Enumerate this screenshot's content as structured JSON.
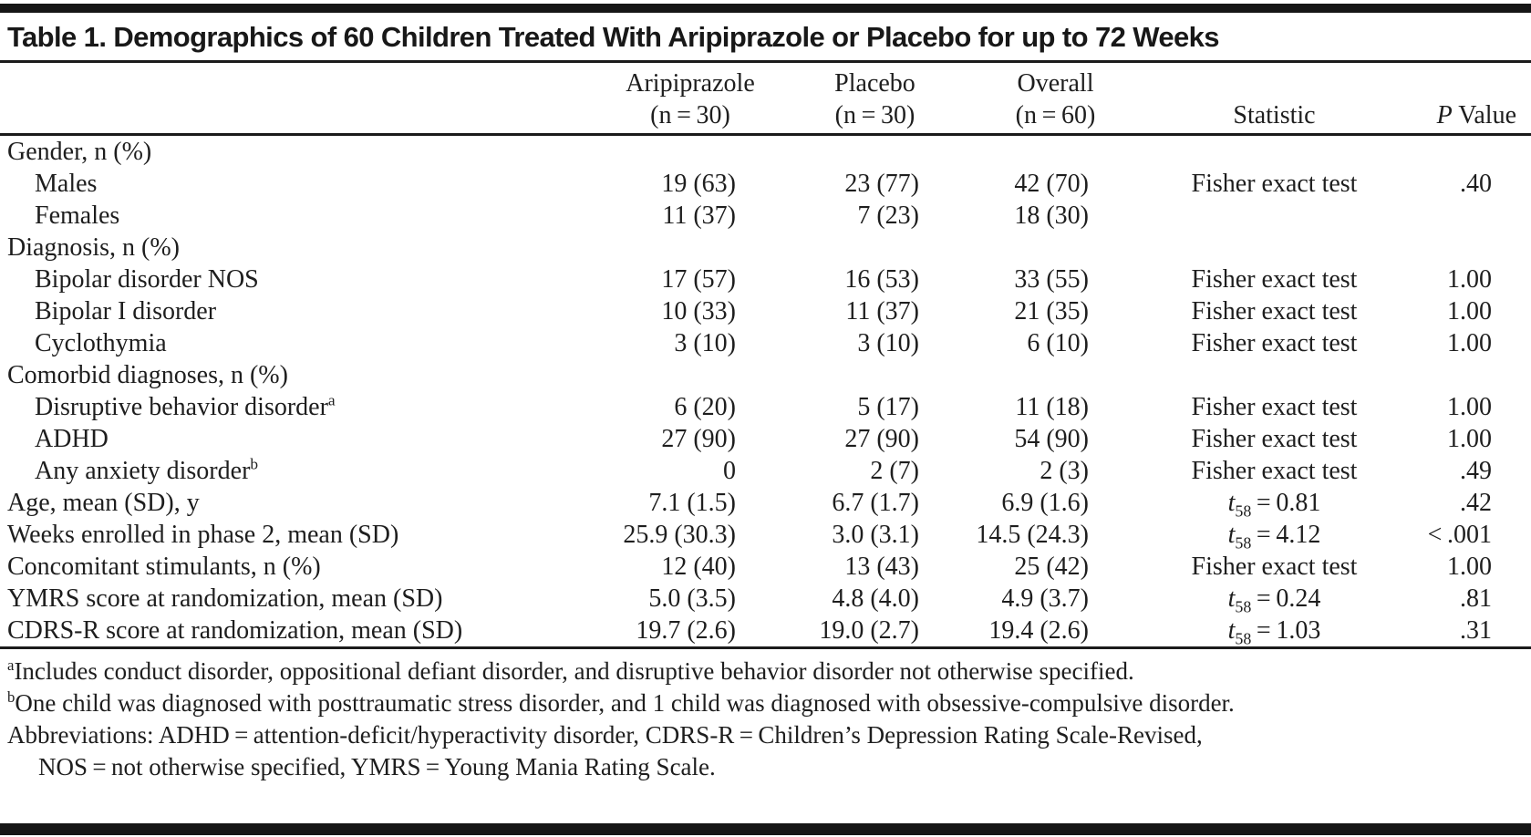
{
  "title": "Table 1. Demographics of 60 Children Treated With Aripiprazole or Placebo for up to 72 Weeks",
  "columns": {
    "group_headers": [
      {
        "line1": "Aripiprazole",
        "line2": "(n = 30)"
      },
      {
        "line1": "Placebo",
        "line2": "(n = 30)"
      },
      {
        "line1": "Overall",
        "line2": "(n = 60)"
      }
    ],
    "statistic_header": "Statistic",
    "p_value_header": {
      "italic": "P",
      "rest": " Value"
    }
  },
  "rows": [
    {
      "label": "Gender, n (%)",
      "indent": 0,
      "aripiprazole": "",
      "placebo": "",
      "overall": "",
      "statistic": null,
      "p": ""
    },
    {
      "label": "Males",
      "indent": 1,
      "aripiprazole": "19 (63)",
      "placebo": "23 (77)",
      "overall": "42 (70)",
      "statistic": {
        "kind": "text",
        "text": "Fisher exact test"
      },
      "p": ".40"
    },
    {
      "label": "Females",
      "indent": 1,
      "aripiprazole": "11 (37)",
      "placebo": "7 (23)",
      "overall": "18 (30)",
      "statistic": null,
      "p": ""
    },
    {
      "label": "Diagnosis, n (%)",
      "indent": 0,
      "aripiprazole": "",
      "placebo": "",
      "overall": "",
      "statistic": null,
      "p": ""
    },
    {
      "label": "Bipolar disorder NOS",
      "indent": 1,
      "aripiprazole": "17 (57)",
      "placebo": "16 (53)",
      "overall": "33 (55)",
      "statistic": {
        "kind": "text",
        "text": "Fisher exact test"
      },
      "p": "1.00"
    },
    {
      "label": "Bipolar I disorder",
      "indent": 1,
      "aripiprazole": "10 (33)",
      "placebo": "11 (37)",
      "overall": "21 (35)",
      "statistic": {
        "kind": "text",
        "text": "Fisher exact test"
      },
      "p": "1.00"
    },
    {
      "label": "Cyclothymia",
      "indent": 1,
      "aripiprazole": "3 (10)",
      "placebo": "3 (10)",
      "overall": "6 (10)",
      "statistic": {
        "kind": "text",
        "text": "Fisher exact test"
      },
      "p": "1.00"
    },
    {
      "label": "Comorbid diagnoses, n (%)",
      "indent": 0,
      "aripiprazole": "",
      "placebo": "",
      "overall": "",
      "statistic": null,
      "p": ""
    },
    {
      "label": "Disruptive behavior disorder",
      "sup": "a",
      "indent": 1,
      "aripiprazole": "6 (20)",
      "placebo": "5 (17)",
      "overall": "11 (18)",
      "statistic": {
        "kind": "text",
        "text": "Fisher exact test"
      },
      "p": "1.00"
    },
    {
      "label": "ADHD",
      "indent": 1,
      "aripiprazole": "27 (90)",
      "placebo": "27 (90)",
      "overall": "54 (90)",
      "statistic": {
        "kind": "text",
        "text": "Fisher exact test"
      },
      "p": "1.00"
    },
    {
      "label": "Any anxiety disorder",
      "sup": "b",
      "indent": 1,
      "aripiprazole": "0",
      "placebo": "2 (7)",
      "overall": "2 (3)",
      "statistic": {
        "kind": "text",
        "text": "Fisher exact test"
      },
      "p": ".49"
    },
    {
      "label": "Age, mean (SD), y",
      "indent": 0,
      "aripiprazole": "7.1 (1.5)",
      "placebo": "6.7 (1.7)",
      "overall": "6.9 (1.6)",
      "statistic": {
        "kind": "t",
        "pre": "t",
        "sub": "58",
        "post": " = 0.81"
      },
      "p": ".42"
    },
    {
      "label": "Weeks enrolled in phase 2, mean (SD)",
      "indent": 0,
      "aripiprazole": "25.9 (30.3)",
      "placebo": "3.0 (3.1)",
      "overall": "14.5 (24.3)",
      "statistic": {
        "kind": "t",
        "pre": "t",
        "sub": "58",
        "post": " = 4.12"
      },
      "p": "< .001"
    },
    {
      "label": "Concomitant stimulants, n (%)",
      "indent": 0,
      "aripiprazole": "12 (40)",
      "placebo": "13 (43)",
      "overall": "25 (42)",
      "statistic": {
        "kind": "text",
        "text": "Fisher exact test"
      },
      "p": "1.00"
    },
    {
      "label": "YMRS score at randomization, mean (SD)",
      "indent": 0,
      "aripiprazole": "5.0 (3.5)",
      "placebo": "4.8 (4.0)",
      "overall": "4.9 (3.7)",
      "statistic": {
        "kind": "t",
        "pre": "t",
        "sub": "58",
        "post": " = 0.24"
      },
      "p": ".81"
    },
    {
      "label": "CDRS-R score at randomization, mean (SD)",
      "indent": 0,
      "aripiprazole": "19.7 (2.6)",
      "placebo": "19.0 (2.7)",
      "overall": "19.4 (2.6)",
      "statistic": {
        "kind": "t",
        "pre": "t",
        "sub": "58",
        "post": " = 1.03"
      },
      "p": ".31"
    }
  ],
  "footnotes": [
    {
      "sup": "a",
      "text": "Includes conduct disorder, oppositional defiant disorder, and disruptive behavior disorder not otherwise specified.",
      "indent": false
    },
    {
      "sup": "b",
      "text": "One child was diagnosed with posttraumatic stress disorder, and 1 child was diagnosed with obsessive-compulsive disorder.",
      "indent": false
    },
    {
      "sup": "",
      "text": "Abbreviations: ADHD = attention-deficit/hyperactivity disorder, CDRS-R = Children’s Depression Rating Scale-Revised,",
      "indent": false
    },
    {
      "sup": "",
      "text": "NOS = not otherwise specified, YMRS = Young Mania Rating Scale.",
      "indent": true
    }
  ]
}
